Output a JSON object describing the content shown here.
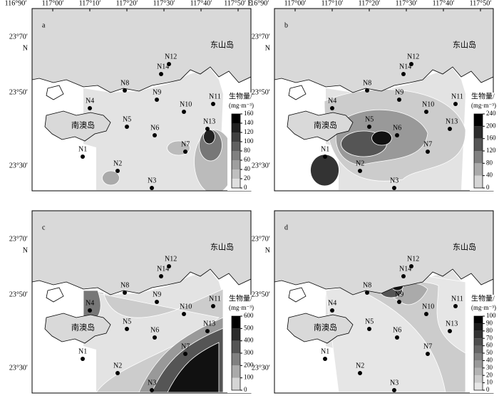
{
  "panels": [
    {
      "label": "a",
      "x_labels": [
        "116°90′",
        "117°00′",
        "117°10′",
        "117°20′",
        "117°30′",
        "117°40′",
        "117°50′ E"
      ],
      "y_labels": [
        "23°70′",
        "N",
        "23°50′",
        "23°30′"
      ],
      "places": [
        "东山岛",
        "南澳岛"
      ],
      "colorbar_title": "生物量/",
      "colorbar_unit": "(mg·m⁻³)",
      "colorbar_ticks": [
        0,
        20,
        40,
        60,
        80,
        100,
        120,
        140,
        160
      ],
      "stations": [
        "N12",
        "N14",
        "N8",
        "N9",
        "N4",
        "N10",
        "N11",
        "N13",
        "N5",
        "N6",
        "N7",
        "N1",
        "N2",
        "N3"
      ]
    },
    {
      "label": "b",
      "x_labels": [
        "116°90′",
        "117°00′",
        "117°10′",
        "117°20′",
        "117°30′",
        "117°40′",
        "117°50′"
      ],
      "y_labels": [
        "23°70′",
        "N",
        "23°50′",
        "23°30′"
      ],
      "places": [
        "东山岛",
        "南澳岛"
      ],
      "colorbar_title": "生物量/",
      "colorbar_unit": "(mg·m⁻³)",
      "colorbar_ticks": [
        0,
        40,
        80,
        120,
        160,
        200,
        240
      ],
      "stations": [
        "N12",
        "N14",
        "N8",
        "N9",
        "N4",
        "N10",
        "N11",
        "N13",
        "N5",
        "N6",
        "N7",
        "N1",
        "N2",
        "N3"
      ]
    },
    {
      "label": "c",
      "y_labels": [
        "23°70′",
        "N",
        "23°50′",
        "23°30′"
      ],
      "places": [
        "东山岛",
        "南澳岛"
      ],
      "colorbar_title": "生物量/",
      "colorbar_unit": "(mg·m⁻³)",
      "colorbar_ticks": [
        0,
        100,
        200,
        300,
        400,
        500,
        600
      ],
      "stations": [
        "N12",
        "N14",
        "N8",
        "N9",
        "N4",
        "N10",
        "N11",
        "N13",
        "N5",
        "N6",
        "N7",
        "N1",
        "N2",
        "N3"
      ]
    },
    {
      "label": "d",
      "y_labels": [
        "23°70′",
        "N",
        "23°50′",
        "23°30′"
      ],
      "places": [
        "东山岛",
        "南澳岛"
      ],
      "colorbar_title": "生物量/",
      "colorbar_unit": "(mg·m⁻³)",
      "colorbar_ticks": [
        0,
        10,
        20,
        30,
        40,
        50,
        60,
        70,
        80,
        90,
        100
      ],
      "stations": [
        "N12",
        "N14",
        "N8",
        "N9",
        "N4",
        "N10",
        "N11",
        "N13",
        "N5",
        "N6",
        "N7",
        "N1",
        "N2",
        "N3"
      ]
    }
  ]
}
